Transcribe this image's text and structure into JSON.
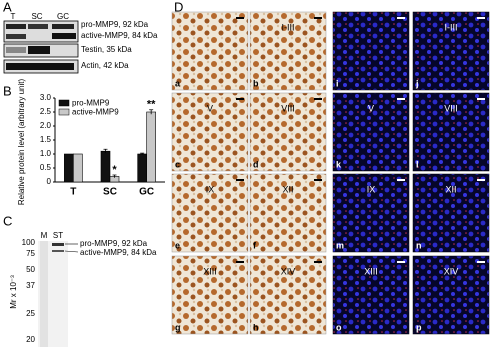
{
  "panel_a": {
    "letter": "A",
    "lanes": [
      "T",
      "SC",
      "GC"
    ],
    "bands": [
      "pro-MMP9, 92 kDa",
      "active-MMP9, 84 kDa",
      "Testin, 35 kDa",
      "Actin, 42 kDa"
    ]
  },
  "chart_data": {
    "type": "bar",
    "letter": "B",
    "y_label": "Relative protein level (arbitrary unit)",
    "categories": [
      "T",
      "SC",
      "GC"
    ],
    "series": [
      {
        "name": "pro-MMP9",
        "color": "#111111",
        "values": [
          1,
          1.1,
          1
        ],
        "errors": [
          0,
          0.07,
          0.03
        ]
      },
      {
        "name": "active-MMP9",
        "color": "#c8c8c8",
        "values": [
          1,
          0.2,
          2.5
        ],
        "errors": [
          0,
          0.05,
          0.08
        ]
      }
    ],
    "annotations": [
      null,
      "*",
      "**"
    ],
    "ylim": [
      0,
      3
    ],
    "yticks": [
      0,
      {
        "value": 0.5,
        "label": "0.5"
      },
      {
        "value": 1,
        "label": "1.0"
      },
      {
        "value": 1.5,
        "label": "1.5"
      },
      {
        "value": 2,
        "label": "2.0"
      },
      {
        "value": 2.5,
        "label": "2.5"
      },
      {
        "value": 3,
        "label": "3.0"
      }
    ],
    "legend": "top-left"
  },
  "panel_c": {
    "letter": "C",
    "lanes": [
      "M",
      "ST"
    ],
    "y_label": "Mr x 10⁻³",
    "markers": [
      "100",
      "75",
      "50",
      "37",
      "25",
      "20"
    ],
    "bands": [
      "pro-MMP9, 92 kDa",
      "active-MMP9, 84 kDa"
    ]
  },
  "panel_d": {
    "letter": "D",
    "tiles": [
      {
        "letter": "a"
      },
      {
        "letter": "b",
        "stage": "I-III"
      },
      {
        "letter": "i"
      },
      {
        "letter": "j",
        "stage": "I-III"
      },
      {
        "letter": "c",
        "stage": "V"
      },
      {
        "letter": "d",
        "stage": "VIII"
      },
      {
        "letter": "k",
        "stage": "V"
      },
      {
        "letter": "l",
        "stage": "VIII"
      },
      {
        "letter": "e",
        "stage": "IX"
      },
      {
        "letter": "f",
        "stage": "XII"
      },
      {
        "letter": "m",
        "stage": "IX"
      },
      {
        "letter": "n",
        "stage": "XII"
      },
      {
        "letter": "g",
        "stage": "XIII"
      },
      {
        "letter": "h",
        "stage": "XIV"
      },
      {
        "letter": "o",
        "stage": "XIII"
      },
      {
        "letter": "p",
        "stage": "XIV"
      }
    ]
  }
}
